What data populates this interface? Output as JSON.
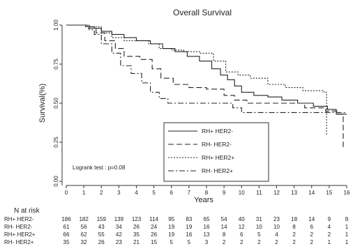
{
  "chart_data": {
    "type": "line",
    "title": "Overall Survival",
    "xlabel": "Years",
    "ylabel": "Survival(%)",
    "xlim": [
      0,
      16
    ],
    "ylim": [
      0,
      1
    ],
    "x_ticks": [
      "0",
      "1",
      "2",
      "3",
      "4",
      "5",
      "6",
      "7",
      "8",
      "9",
      "10",
      "11",
      "12",
      "13",
      "14",
      "15",
      "16"
    ],
    "y_ticks": [
      "0.00",
      "0.25",
      "0.50",
      "0.75",
      "1.00"
    ],
    "grid": false,
    "legend_position": "bottom-right",
    "annotation": "Logrank test : p=0.08",
    "series": [
      {
        "name": "RH+ HER2-",
        "style": "solid",
        "points": [
          [
            0,
            1.0
          ],
          [
            1.1,
            0.99
          ],
          [
            1.6,
            0.98
          ],
          [
            2.0,
            0.96
          ],
          [
            2.6,
            0.94
          ],
          [
            3.3,
            0.92
          ],
          [
            4.0,
            0.9
          ],
          [
            4.8,
            0.88
          ],
          [
            5.5,
            0.85
          ],
          [
            6.2,
            0.83
          ],
          [
            6.9,
            0.8
          ],
          [
            7.6,
            0.77
          ],
          [
            8.3,
            0.72
          ],
          [
            8.8,
            0.68
          ],
          [
            9.2,
            0.65
          ],
          [
            9.6,
            0.61
          ],
          [
            10.0,
            0.57
          ],
          [
            10.7,
            0.55
          ],
          [
            11.5,
            0.54
          ],
          [
            12.3,
            0.52
          ],
          [
            13.2,
            0.5
          ],
          [
            14.1,
            0.48
          ],
          [
            14.9,
            0.46
          ],
          [
            15.4,
            0.43
          ],
          [
            16.0,
            0.43
          ]
        ]
      },
      {
        "name": "RH- HER2-",
        "style": "dashed",
        "points": [
          [
            0,
            1.0
          ],
          [
            1.2,
            0.98
          ],
          [
            1.7,
            0.95
          ],
          [
            2.2,
            0.9
          ],
          [
            2.8,
            0.85
          ],
          [
            3.3,
            0.8
          ],
          [
            4.2,
            0.78
          ],
          [
            4.9,
            0.72
          ],
          [
            5.4,
            0.66
          ],
          [
            6.1,
            0.62
          ],
          [
            7.0,
            0.6
          ],
          [
            8.0,
            0.59
          ],
          [
            9.0,
            0.55
          ],
          [
            9.6,
            0.52
          ],
          [
            10.3,
            0.5
          ],
          [
            11.0,
            0.5
          ],
          [
            13.0,
            0.5
          ],
          [
            13.6,
            0.47
          ],
          [
            14.8,
            0.45
          ],
          [
            15.5,
            0.43
          ],
          [
            15.8,
            0.43
          ],
          [
            15.8,
            0.22
          ]
        ]
      },
      {
        "name": "RH+ HER2+",
        "style": "dotted",
        "points": [
          [
            0,
            1.0
          ],
          [
            1.3,
            0.99
          ],
          [
            2.0,
            0.95
          ],
          [
            2.6,
            0.92
          ],
          [
            3.3,
            0.9
          ],
          [
            4.0,
            0.9
          ],
          [
            4.7,
            0.88
          ],
          [
            5.3,
            0.85
          ],
          [
            6.0,
            0.84
          ],
          [
            6.7,
            0.83
          ],
          [
            7.6,
            0.82
          ],
          [
            8.4,
            0.77
          ],
          [
            9.1,
            0.7
          ],
          [
            9.8,
            0.68
          ],
          [
            10.5,
            0.66
          ],
          [
            11.5,
            0.62
          ],
          [
            12.5,
            0.6
          ],
          [
            13.5,
            0.58
          ],
          [
            14.7,
            0.57
          ],
          [
            14.85,
            0.29
          ]
        ]
      },
      {
        "name": "RH- HER2+",
        "style": "dashdot",
        "points": [
          [
            0,
            1.0
          ],
          [
            1.3,
            0.97
          ],
          [
            1.6,
            0.94
          ],
          [
            2.0,
            0.88
          ],
          [
            2.6,
            0.82
          ],
          [
            3.1,
            0.74
          ],
          [
            3.7,
            0.69
          ],
          [
            4.3,
            0.63
          ],
          [
            4.8,
            0.57
          ],
          [
            5.3,
            0.53
          ],
          [
            5.8,
            0.5
          ],
          [
            6.5,
            0.5
          ],
          [
            9.0,
            0.5
          ],
          [
            9.5,
            0.47
          ],
          [
            10.0,
            0.44
          ],
          [
            11.0,
            0.44
          ],
          [
            16.0,
            0.44
          ]
        ]
      }
    ],
    "risk_table": {
      "header": "N at risk",
      "times": [
        0,
        1,
        2,
        3,
        4,
        5,
        6,
        7,
        8,
        9,
        10,
        11,
        12,
        13,
        14,
        15,
        16
      ],
      "rows": [
        {
          "label": "RH+ HER2-",
          "values": [
            "186",
            "182",
            "159",
            "139",
            "123",
            "114",
            "95",
            "83",
            "65",
            "54",
            "40",
            "31",
            "23",
            "18",
            "14",
            "9",
            "8"
          ]
        },
        {
          "label": "RH- HER2-",
          "values": [
            "61",
            "56",
            "43",
            "34",
            "26",
            "24",
            "19",
            "19",
            "16",
            "14",
            "12",
            "10",
            "10",
            "8",
            "6",
            "4",
            "1"
          ]
        },
        {
          "label": "RH+ HER2+",
          "values": [
            "66",
            "62",
            "55",
            "42",
            "35",
            "26",
            "19",
            "16",
            "13",
            "8",
            "6",
            "5",
            "4",
            "2",
            "2",
            "2",
            "1"
          ]
        },
        {
          "label": "RH- HER2+",
          "values": [
            "35",
            "32",
            "26",
            "23",
            "21",
            "15",
            "5",
            "5",
            "3",
            "2",
            "2",
            "2",
            "2",
            "2",
            "2",
            "1",
            "1"
          ]
        }
      ]
    }
  }
}
